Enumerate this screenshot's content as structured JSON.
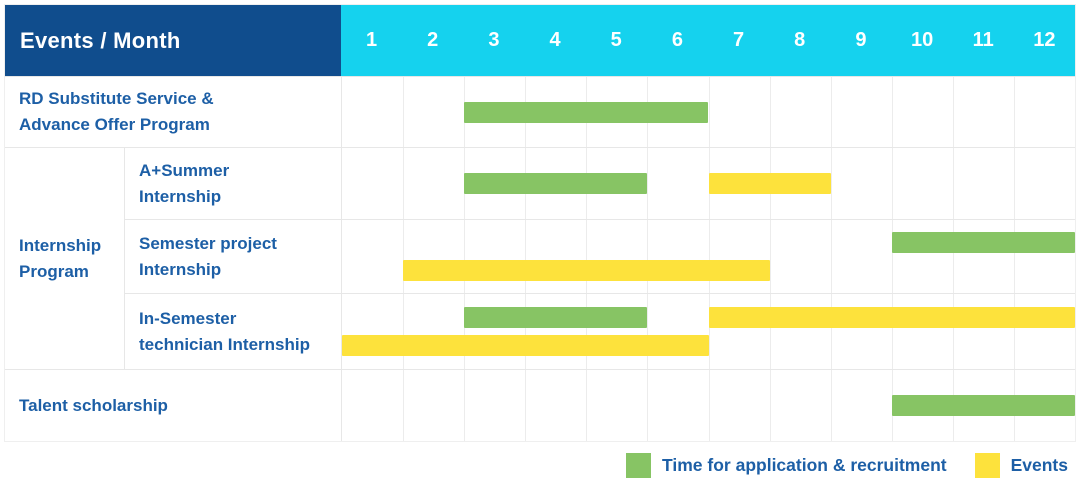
{
  "chart_data": {
    "type": "gantt",
    "corner_label": "Events / Month",
    "months": [
      "1",
      "2",
      "3",
      "4",
      "5",
      "6",
      "7",
      "8",
      "9",
      "10",
      "11",
      "12"
    ],
    "x_range": [
      1,
      12
    ],
    "groups": [
      {
        "label_lines": [
          "Internship",
          "Program"
        ]
      }
    ],
    "rows": [
      {
        "label_lines": [
          "RD Substitute Service &",
          "Advance Offer Program"
        ],
        "group": null,
        "lines": [
          [
            {
              "kind": "application",
              "start_month": 3,
              "end_month": 6
            }
          ]
        ]
      },
      {
        "label_lines": [
          "A+Summer",
          "Internship"
        ],
        "group": 0,
        "lines": [
          [
            {
              "kind": "application",
              "start_month": 3,
              "end_month": 5
            },
            {
              "kind": "event",
              "start_month": 7,
              "end_month": 8
            }
          ]
        ]
      },
      {
        "label_lines": [
          "Semester project",
          "Internship"
        ],
        "group": 0,
        "lines": [
          [
            {
              "kind": "application",
              "start_month": 10,
              "end_month": 12
            }
          ],
          [
            {
              "kind": "event",
              "start_month": 2,
              "end_month": 7
            }
          ]
        ]
      },
      {
        "label_lines": [
          "In-Semester",
          "technician Internship"
        ],
        "group": 0,
        "lines": [
          [
            {
              "kind": "application",
              "start_month": 3,
              "end_month": 5
            },
            {
              "kind": "event",
              "start_month": 7,
              "end_month": 12
            }
          ],
          [
            {
              "kind": "event",
              "start_month": 1,
              "end_month": 6
            }
          ]
        ]
      },
      {
        "label_lines": [
          "Talent scholarship"
        ],
        "group": null,
        "lines": [
          [
            {
              "kind": "application",
              "start_month": 10,
              "end_month": 12
            }
          ]
        ]
      }
    ],
    "legend": [
      {
        "kind": "application",
        "label": "Time for application & recruitment"
      },
      {
        "kind": "event",
        "label": "Events"
      }
    ],
    "colors": {
      "header_bg": "#104d8d",
      "months_bg": "#15d2ee",
      "application": "#87c464",
      "event": "#fde23c",
      "label_text": "#1d5fa6",
      "header_text": "#ffffff",
      "gridline": "#ececec",
      "row_border": "#e7e7e7"
    }
  }
}
